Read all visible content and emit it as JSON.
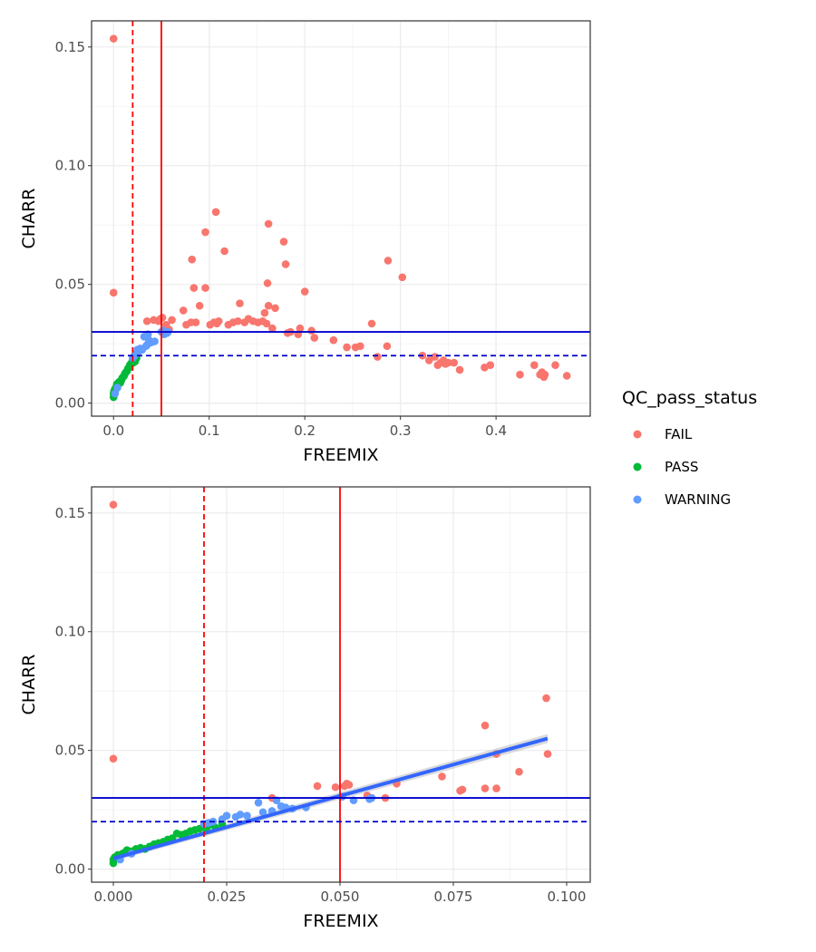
{
  "legend": {
    "title": "QC_pass_status",
    "entries": [
      {
        "label": "FAIL",
        "color": "#F8766D"
      },
      {
        "label": "PASS",
        "color": "#00BA38"
      },
      {
        "label": "WARNING",
        "color": "#619CFF"
      }
    ],
    "placement": "right"
  },
  "chart_data": [
    {
      "type": "scatter",
      "xlabel": "FREEMIX",
      "ylabel": "CHARR",
      "xlim": [
        -0.023,
        0.4985
      ],
      "ylim": [
        -0.0055,
        0.161
      ],
      "x_ticks": [
        0.0,
        0.1,
        0.2,
        0.3,
        0.4
      ],
      "x_tick_labels": [
        "0.0",
        "0.1",
        "0.2",
        "0.3",
        "0.4"
      ],
      "y_ticks": [
        0.0,
        0.05,
        0.1,
        0.15
      ],
      "y_tick_labels": [
        "0.00",
        "0.05",
        "0.10",
        "0.15"
      ],
      "grid": true,
      "reference_lines": [
        {
          "orientation": "vertical",
          "value": 0.02,
          "style": "dashed",
          "color": "#FF0000"
        },
        {
          "orientation": "vertical",
          "value": 0.05,
          "style": "solid",
          "color": "#FF0000"
        },
        {
          "orientation": "horizontal",
          "value": 0.03,
          "style": "solid",
          "color": "#0000CD"
        },
        {
          "orientation": "horizontal",
          "value": 0.02,
          "style": "dashed",
          "color": "#0000CD"
        }
      ],
      "series": [
        {
          "name": "FAIL",
          "color": "#F8766D",
          "points": [
            [
              0.0,
              0.1535
            ],
            [
              0.0,
              0.0465
            ],
            [
              0.035,
              0.0345
            ],
            [
              0.042,
              0.035
            ],
            [
              0.047,
              0.0345
            ],
            [
              0.049,
              0.0355
            ],
            [
              0.051,
              0.036
            ],
            [
              0.055,
              0.033
            ],
            [
              0.058,
              0.031
            ],
            [
              0.061,
              0.035
            ],
            [
              0.073,
              0.039
            ],
            [
              0.076,
              0.033
            ],
            [
              0.081,
              0.034
            ],
            [
              0.082,
              0.0605
            ],
            [
              0.084,
              0.0485
            ],
            [
              0.086,
              0.034
            ],
            [
              0.09,
              0.041
            ],
            [
              0.096,
              0.072
            ],
            [
              0.096,
              0.0485
            ],
            [
              0.101,
              0.033
            ],
            [
              0.105,
              0.034
            ],
            [
              0.107,
              0.0805
            ],
            [
              0.108,
              0.0335
            ],
            [
              0.11,
              0.0345
            ],
            [
              0.116,
              0.064
            ],
            [
              0.12,
              0.033
            ],
            [
              0.125,
              0.034
            ],
            [
              0.13,
              0.0345
            ],
            [
              0.132,
              0.042
            ],
            [
              0.137,
              0.034
            ],
            [
              0.141,
              0.0355
            ],
            [
              0.146,
              0.0345
            ],
            [
              0.151,
              0.034
            ],
            [
              0.156,
              0.0345
            ],
            [
              0.158,
              0.038
            ],
            [
              0.16,
              0.0335
            ],
            [
              0.162,
              0.0755
            ],
            [
              0.161,
              0.0505
            ],
            [
              0.162,
              0.041
            ],
            [
              0.166,
              0.0315
            ],
            [
              0.169,
              0.04
            ],
            [
              0.178,
              0.068
            ],
            [
              0.18,
              0.0585
            ],
            [
              0.182,
              0.0295
            ],
            [
              0.185,
              0.03
            ],
            [
              0.193,
              0.029
            ],
            [
              0.195,
              0.0315
            ],
            [
              0.2,
              0.047
            ],
            [
              0.207,
              0.0305
            ],
            [
              0.21,
              0.0275
            ],
            [
              0.23,
              0.0265
            ],
            [
              0.244,
              0.0235
            ],
            [
              0.253,
              0.0235
            ],
            [
              0.258,
              0.024
            ],
            [
              0.27,
              0.0335
            ],
            [
              0.276,
              0.0195
            ],
            [
              0.286,
              0.024
            ],
            [
              0.287,
              0.06
            ],
            [
              0.302,
              0.053
            ],
            [
              0.323,
              0.02
            ],
            [
              0.33,
              0.018
            ],
            [
              0.336,
              0.0195
            ],
            [
              0.339,
              0.016
            ],
            [
              0.342,
              0.017
            ],
            [
              0.345,
              0.018
            ],
            [
              0.347,
              0.0165
            ],
            [
              0.35,
              0.017
            ],
            [
              0.356,
              0.017
            ],
            [
              0.362,
              0.014
            ],
            [
              0.388,
              0.015
            ],
            [
              0.394,
              0.016
            ],
            [
              0.425,
              0.012
            ],
            [
              0.44,
              0.016
            ],
            [
              0.446,
              0.012
            ],
            [
              0.448,
              0.013
            ],
            [
              0.45,
              0.011
            ],
            [
              0.451,
              0.012
            ],
            [
              0.462,
              0.016
            ],
            [
              0.474,
              0.0115
            ]
          ]
        },
        {
          "name": "PASS",
          "color": "#00BA38",
          "points": [
            [
              0.0,
              0.0025
            ],
            [
              0.0,
              0.004
            ],
            [
              0.0005,
              0.005
            ],
            [
              0.001,
              0.0045
            ],
            [
              0.0015,
              0.006
            ],
            [
              0.002,
              0.0055
            ],
            [
              0.0025,
              0.0065
            ],
            [
              0.003,
              0.007
            ],
            [
              0.0035,
              0.008
            ],
            [
              0.004,
              0.0075
            ],
            [
              0.005,
              0.0085
            ],
            [
              0.006,
              0.009
            ],
            [
              0.007,
              0.0085
            ],
            [
              0.008,
              0.0095
            ],
            [
              0.009,
              0.0105
            ],
            [
              0.01,
              0.011
            ],
            [
              0.011,
              0.0115
            ],
            [
              0.012,
              0.0125
            ],
            [
              0.013,
              0.013
            ],
            [
              0.014,
              0.0135
            ],
            [
              0.015,
              0.0145
            ],
            [
              0.016,
              0.015
            ],
            [
              0.017,
              0.016
            ],
            [
              0.018,
              0.0165
            ],
            [
              0.019,
              0.017
            ],
            [
              0.02,
              0.018
            ],
            [
              0.0205,
              0.017
            ],
            [
              0.021,
              0.0185
            ],
            [
              0.0225,
              0.0175
            ],
            [
              0.024,
              0.019
            ]
          ]
        },
        {
          "name": "WARNING",
          "color": "#619CFF",
          "points": [
            [
              0.0015,
              0.004
            ],
            [
              0.004,
              0.0065
            ],
            [
              0.02,
              0.019
            ],
            [
              0.021,
              0.0195
            ],
            [
              0.022,
              0.02
            ],
            [
              0.024,
              0.021
            ],
            [
              0.025,
              0.0225
            ],
            [
              0.027,
              0.022
            ],
            [
              0.028,
              0.023
            ],
            [
              0.03,
              0.0225
            ],
            [
              0.032,
              0.028
            ],
            [
              0.034,
              0.024
            ],
            [
              0.035,
              0.0245
            ],
            [
              0.036,
              0.029
            ],
            [
              0.037,
              0.0265
            ],
            [
              0.038,
              0.026
            ],
            [
              0.039,
              0.0255
            ],
            [
              0.043,
              0.026
            ],
            [
              0.05,
              0.03
            ],
            [
              0.052,
              0.0305
            ],
            [
              0.053,
              0.029
            ],
            [
              0.056,
              0.0295
            ],
            [
              0.057,
              0.03
            ]
          ]
        }
      ]
    },
    {
      "type": "scatter",
      "xlabel": "FREEMIX",
      "ylabel": "CHARR",
      "xlim": [
        -0.0048,
        0.1052
      ],
      "ylim": [
        -0.0055,
        0.161
      ],
      "x_ticks": [
        0.0,
        0.025,
        0.05,
        0.075,
        0.1
      ],
      "x_tick_labels": [
        "0.000",
        "0.025",
        "0.050",
        "0.075",
        "0.100"
      ],
      "y_ticks": [
        0.0,
        0.05,
        0.1,
        0.15
      ],
      "y_tick_labels": [
        "0.00",
        "0.05",
        "0.10",
        "0.15"
      ],
      "grid": true,
      "reference_lines": [
        {
          "orientation": "vertical",
          "value": 0.02,
          "style": "dashed",
          "color": "#FF0000"
        },
        {
          "orientation": "vertical",
          "value": 0.05,
          "style": "solid",
          "color": "#FF0000"
        },
        {
          "orientation": "horizontal",
          "value": 0.03,
          "style": "solid",
          "color": "#0000CD"
        },
        {
          "orientation": "horizontal",
          "value": 0.02,
          "style": "dashed",
          "color": "#0000CD"
        }
      ],
      "trend_line": {
        "method": "linear",
        "color": "#3366FF",
        "from": [
          0.0,
          0.0045
        ],
        "to": [
          0.0958,
          0.055
        ]
      },
      "series": [
        {
          "name": "FAIL",
          "color": "#F8766D",
          "points": [
            [
              0.0,
              0.1535
            ],
            [
              0.0,
              0.0465
            ],
            [
              0.035,
              0.03
            ],
            [
              0.045,
              0.035
            ],
            [
              0.049,
              0.0345
            ],
            [
              0.051,
              0.035
            ],
            [
              0.0515,
              0.036
            ],
            [
              0.052,
              0.0355
            ],
            [
              0.056,
              0.031
            ],
            [
              0.06,
              0.03
            ],
            [
              0.0625,
              0.036
            ],
            [
              0.0725,
              0.039
            ],
            [
              0.0765,
              0.033
            ],
            [
              0.077,
              0.0335
            ],
            [
              0.082,
              0.034
            ],
            [
              0.082,
              0.0605
            ],
            [
              0.0845,
              0.0485
            ],
            [
              0.0845,
              0.034
            ],
            [
              0.0895,
              0.041
            ],
            [
              0.0955,
              0.072
            ],
            [
              0.0958,
              0.0485
            ]
          ]
        },
        {
          "name": "PASS",
          "color": "#00BA38",
          "points": [
            [
              0.0,
              0.0025
            ],
            [
              0.0,
              0.004
            ],
            [
              0.0003,
              0.005
            ],
            [
              0.0006,
              0.0045
            ],
            [
              0.001,
              0.006
            ],
            [
              0.0015,
              0.0055
            ],
            [
              0.002,
              0.0065
            ],
            [
              0.0025,
              0.007
            ],
            [
              0.003,
              0.008
            ],
            [
              0.0035,
              0.0075
            ],
            [
              0.004,
              0.0075
            ],
            [
              0.005,
              0.0085
            ],
            [
              0.006,
              0.009
            ],
            [
              0.007,
              0.0085
            ],
            [
              0.008,
              0.0095
            ],
            [
              0.009,
              0.0105
            ],
            [
              0.01,
              0.011
            ],
            [
              0.011,
              0.0115
            ],
            [
              0.012,
              0.0125
            ],
            [
              0.013,
              0.013
            ],
            [
              0.014,
              0.015
            ],
            [
              0.015,
              0.0145
            ],
            [
              0.016,
              0.015
            ],
            [
              0.017,
              0.016
            ],
            [
              0.018,
              0.0165
            ],
            [
              0.019,
              0.017
            ],
            [
              0.02,
              0.018
            ],
            [
              0.0205,
              0.017
            ],
            [
              0.021,
              0.0185
            ],
            [
              0.0225,
              0.0175
            ],
            [
              0.024,
              0.019
            ]
          ]
        },
        {
          "name": "WARNING",
          "color": "#619CFF",
          "points": [
            [
              0.0015,
              0.004
            ],
            [
              0.004,
              0.0065
            ],
            [
              0.02,
              0.019
            ],
            [
              0.021,
              0.0195
            ],
            [
              0.022,
              0.02
            ],
            [
              0.024,
              0.021
            ],
            [
              0.025,
              0.0225
            ],
            [
              0.027,
              0.022
            ],
            [
              0.028,
              0.023
            ],
            [
              0.0295,
              0.0225
            ],
            [
              0.032,
              0.028
            ],
            [
              0.033,
              0.024
            ],
            [
              0.035,
              0.0245
            ],
            [
              0.036,
              0.029
            ],
            [
              0.037,
              0.0265
            ],
            [
              0.038,
              0.026
            ],
            [
              0.0395,
              0.0255
            ],
            [
              0.0425,
              0.026
            ],
            [
              0.0505,
              0.0305
            ],
            [
              0.053,
              0.029
            ],
            [
              0.0565,
              0.0295
            ],
            [
              0.057,
              0.03
            ]
          ]
        }
      ]
    }
  ]
}
